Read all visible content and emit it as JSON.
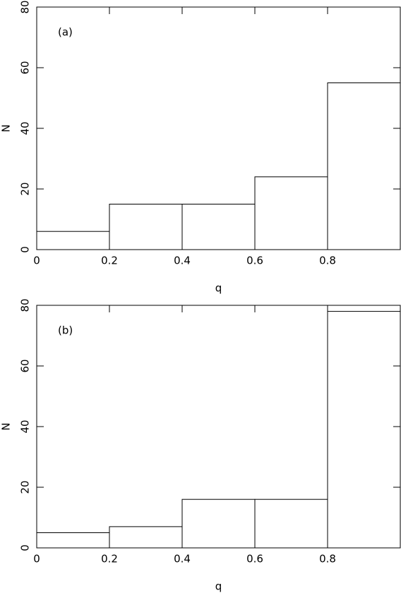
{
  "chart_data": [
    {
      "type": "histogram",
      "annotation": "(a)",
      "xlabel": "q",
      "ylabel": "N",
      "bins": [
        0,
        0.2,
        0.4,
        0.6,
        0.8,
        1.0
      ],
      "values": [
        6,
        15,
        15,
        24,
        55
      ],
      "xlim": [
        0,
        1
      ],
      "ylim": [
        0,
        80
      ],
      "xticks": [
        0,
        0.2,
        0.4,
        0.6,
        0.8
      ],
      "yticks": [
        0,
        20,
        40,
        60,
        80
      ]
    },
    {
      "type": "histogram",
      "annotation": "(b)",
      "xlabel": "q",
      "ylabel": "N",
      "bins": [
        0,
        0.2,
        0.4,
        0.6,
        0.8,
        1.0
      ],
      "values": [
        5,
        7,
        16,
        16,
        78
      ],
      "xlim": [
        0,
        1
      ],
      "ylim": [
        0,
        80
      ],
      "xticks": [
        0,
        0.2,
        0.4,
        0.6,
        0.8
      ],
      "yticks": [
        0,
        20,
        40,
        60,
        80
      ]
    }
  ]
}
